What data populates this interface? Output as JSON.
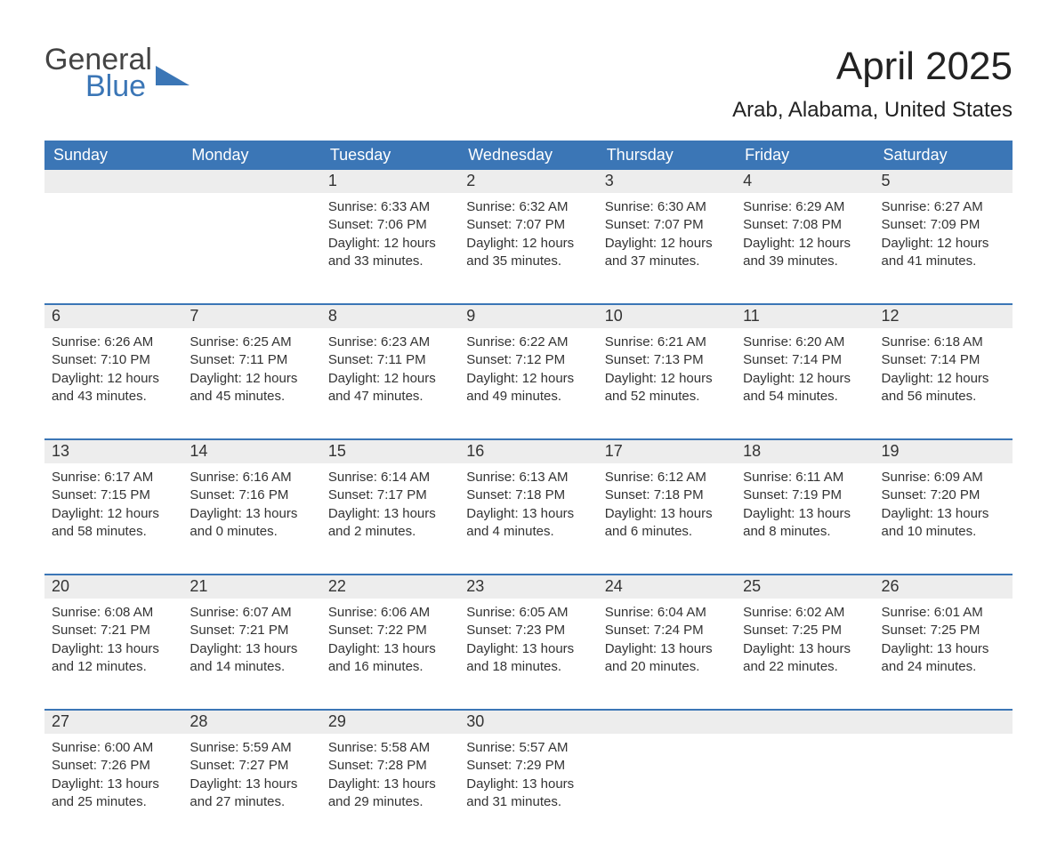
{
  "logo": {
    "word1": "General",
    "word2": "Blue",
    "icon_color": "#3b76b6"
  },
  "title": "April 2025",
  "location": "Arab, Alabama, United States",
  "colors": {
    "header_bg": "#3b76b6",
    "header_text": "#ffffff",
    "daynum_bg": "#ededed",
    "text": "#333333",
    "week_border": "#3b76b6"
  },
  "weekdays": [
    "Sunday",
    "Monday",
    "Tuesday",
    "Wednesday",
    "Thursday",
    "Friday",
    "Saturday"
  ],
  "weeks": [
    [
      {
        "day": "",
        "sunrise": "",
        "sunset": "",
        "daylight": ""
      },
      {
        "day": "",
        "sunrise": "",
        "sunset": "",
        "daylight": ""
      },
      {
        "day": "1",
        "sunrise": "Sunrise: 6:33 AM",
        "sunset": "Sunset: 7:06 PM",
        "daylight": "Daylight: 12 hours and 33 minutes."
      },
      {
        "day": "2",
        "sunrise": "Sunrise: 6:32 AM",
        "sunset": "Sunset: 7:07 PM",
        "daylight": "Daylight: 12 hours and 35 minutes."
      },
      {
        "day": "3",
        "sunrise": "Sunrise: 6:30 AM",
        "sunset": "Sunset: 7:07 PM",
        "daylight": "Daylight: 12 hours and 37 minutes."
      },
      {
        "day": "4",
        "sunrise": "Sunrise: 6:29 AM",
        "sunset": "Sunset: 7:08 PM",
        "daylight": "Daylight: 12 hours and 39 minutes."
      },
      {
        "day": "5",
        "sunrise": "Sunrise: 6:27 AM",
        "sunset": "Sunset: 7:09 PM",
        "daylight": "Daylight: 12 hours and 41 minutes."
      }
    ],
    [
      {
        "day": "6",
        "sunrise": "Sunrise: 6:26 AM",
        "sunset": "Sunset: 7:10 PM",
        "daylight": "Daylight: 12 hours and 43 minutes."
      },
      {
        "day": "7",
        "sunrise": "Sunrise: 6:25 AM",
        "sunset": "Sunset: 7:11 PM",
        "daylight": "Daylight: 12 hours and 45 minutes."
      },
      {
        "day": "8",
        "sunrise": "Sunrise: 6:23 AM",
        "sunset": "Sunset: 7:11 PM",
        "daylight": "Daylight: 12 hours and 47 minutes."
      },
      {
        "day": "9",
        "sunrise": "Sunrise: 6:22 AM",
        "sunset": "Sunset: 7:12 PM",
        "daylight": "Daylight: 12 hours and 49 minutes."
      },
      {
        "day": "10",
        "sunrise": "Sunrise: 6:21 AM",
        "sunset": "Sunset: 7:13 PM",
        "daylight": "Daylight: 12 hours and 52 minutes."
      },
      {
        "day": "11",
        "sunrise": "Sunrise: 6:20 AM",
        "sunset": "Sunset: 7:14 PM",
        "daylight": "Daylight: 12 hours and 54 minutes."
      },
      {
        "day": "12",
        "sunrise": "Sunrise: 6:18 AM",
        "sunset": "Sunset: 7:14 PM",
        "daylight": "Daylight: 12 hours and 56 minutes."
      }
    ],
    [
      {
        "day": "13",
        "sunrise": "Sunrise: 6:17 AM",
        "sunset": "Sunset: 7:15 PM",
        "daylight": "Daylight: 12 hours and 58 minutes."
      },
      {
        "day": "14",
        "sunrise": "Sunrise: 6:16 AM",
        "sunset": "Sunset: 7:16 PM",
        "daylight": "Daylight: 13 hours and 0 minutes."
      },
      {
        "day": "15",
        "sunrise": "Sunrise: 6:14 AM",
        "sunset": "Sunset: 7:17 PM",
        "daylight": "Daylight: 13 hours and 2 minutes."
      },
      {
        "day": "16",
        "sunrise": "Sunrise: 6:13 AM",
        "sunset": "Sunset: 7:18 PM",
        "daylight": "Daylight: 13 hours and 4 minutes."
      },
      {
        "day": "17",
        "sunrise": "Sunrise: 6:12 AM",
        "sunset": "Sunset: 7:18 PM",
        "daylight": "Daylight: 13 hours and 6 minutes."
      },
      {
        "day": "18",
        "sunrise": "Sunrise: 6:11 AM",
        "sunset": "Sunset: 7:19 PM",
        "daylight": "Daylight: 13 hours and 8 minutes."
      },
      {
        "day": "19",
        "sunrise": "Sunrise: 6:09 AM",
        "sunset": "Sunset: 7:20 PM",
        "daylight": "Daylight: 13 hours and 10 minutes."
      }
    ],
    [
      {
        "day": "20",
        "sunrise": "Sunrise: 6:08 AM",
        "sunset": "Sunset: 7:21 PM",
        "daylight": "Daylight: 13 hours and 12 minutes."
      },
      {
        "day": "21",
        "sunrise": "Sunrise: 6:07 AM",
        "sunset": "Sunset: 7:21 PM",
        "daylight": "Daylight: 13 hours and 14 minutes."
      },
      {
        "day": "22",
        "sunrise": "Sunrise: 6:06 AM",
        "sunset": "Sunset: 7:22 PM",
        "daylight": "Daylight: 13 hours and 16 minutes."
      },
      {
        "day": "23",
        "sunrise": "Sunrise: 6:05 AM",
        "sunset": "Sunset: 7:23 PM",
        "daylight": "Daylight: 13 hours and 18 minutes."
      },
      {
        "day": "24",
        "sunrise": "Sunrise: 6:04 AM",
        "sunset": "Sunset: 7:24 PM",
        "daylight": "Daylight: 13 hours and 20 minutes."
      },
      {
        "day": "25",
        "sunrise": "Sunrise: 6:02 AM",
        "sunset": "Sunset: 7:25 PM",
        "daylight": "Daylight: 13 hours and 22 minutes."
      },
      {
        "day": "26",
        "sunrise": "Sunrise: 6:01 AM",
        "sunset": "Sunset: 7:25 PM",
        "daylight": "Daylight: 13 hours and 24 minutes."
      }
    ],
    [
      {
        "day": "27",
        "sunrise": "Sunrise: 6:00 AM",
        "sunset": "Sunset: 7:26 PM",
        "daylight": "Daylight: 13 hours and 25 minutes."
      },
      {
        "day": "28",
        "sunrise": "Sunrise: 5:59 AM",
        "sunset": "Sunset: 7:27 PM",
        "daylight": "Daylight: 13 hours and 27 minutes."
      },
      {
        "day": "29",
        "sunrise": "Sunrise: 5:58 AM",
        "sunset": "Sunset: 7:28 PM",
        "daylight": "Daylight: 13 hours and 29 minutes."
      },
      {
        "day": "30",
        "sunrise": "Sunrise: 5:57 AM",
        "sunset": "Sunset: 7:29 PM",
        "daylight": "Daylight: 13 hours and 31 minutes."
      },
      {
        "day": "",
        "sunrise": "",
        "sunset": "",
        "daylight": ""
      },
      {
        "day": "",
        "sunrise": "",
        "sunset": "",
        "daylight": ""
      },
      {
        "day": "",
        "sunrise": "",
        "sunset": "",
        "daylight": ""
      }
    ]
  ]
}
